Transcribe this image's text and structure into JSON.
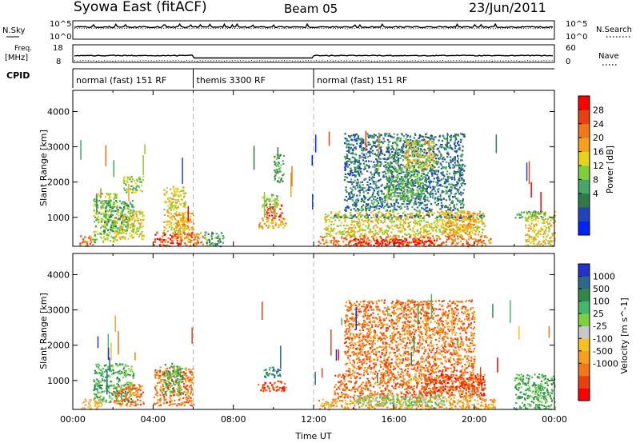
{
  "header": {
    "station_title": "Syowa East (fitACF)",
    "beam": "Beam 05",
    "date": "23/Jun/2011"
  },
  "top_panel": {
    "left_label": "N.Sky",
    "left_ticks": [
      "10^5",
      "10^0"
    ],
    "right_ticks": [
      "10^5",
      "10^0"
    ],
    "right_label": "N.Search"
  },
  "freq_panel": {
    "label_line1": "Freq.",
    "label_line2": "[MHz]",
    "left_ticks": [
      "18",
      "8"
    ],
    "right_ticks": [
      "60",
      "0"
    ],
    "right_label": "Nave"
  },
  "cpid": {
    "label": "CPID",
    "segments": [
      {
        "start": 0,
        "end": 6,
        "text": "normal (fast) 151 RF"
      },
      {
        "start": 6,
        "end": 12,
        "text": "themis 3300 RF"
      },
      {
        "start": 12,
        "end": 24,
        "text": "normal (fast) 151 RF"
      }
    ]
  },
  "chart_data": [
    {
      "type": "heatmap",
      "title": "",
      "xlabel": "",
      "ylabel": "Slant Range [km]",
      "xlim": [
        0,
        24
      ],
      "ylim": [
        180,
        4600
      ],
      "yticks": [
        1000,
        2000,
        3000,
        4000
      ],
      "colorbar_label": "Power [dB]",
      "colorbar_ticks": [
        "28",
        "24",
        "20",
        "16",
        "12",
        "8",
        "4"
      ],
      "colorbar_colors": [
        "#0022ff",
        "#2244bb",
        "#2f7a4a",
        "#45a868",
        "#7fcf3a",
        "#e8d21a",
        "#f7a020",
        "#f07818",
        "#e84010",
        "#ff0000"
      ],
      "regions": [
        {
          "t0": 0.3,
          "t1": 1.0,
          "r0": 200,
          "r1": 500,
          "level": 7
        },
        {
          "t0": 1.0,
          "t1": 2.2,
          "r0": 300,
          "r1": 1700,
          "level": 4
        },
        {
          "t0": 1.5,
          "t1": 3.0,
          "r0": 600,
          "r1": 1500,
          "level": 3
        },
        {
          "t0": 2.0,
          "t1": 3.5,
          "r0": 400,
          "r1": 1200,
          "level": 5
        },
        {
          "t0": 2.5,
          "t1": 3.5,
          "r0": 1700,
          "r1": 2200,
          "level": 4
        },
        {
          "t0": 4.0,
          "t1": 5.4,
          "r0": 200,
          "r1": 600,
          "level": 8
        },
        {
          "t0": 4.5,
          "t1": 5.6,
          "r0": 600,
          "r1": 1900,
          "level": 5
        },
        {
          "t0": 5.0,
          "t1": 6.0,
          "r0": 300,
          "r1": 1200,
          "level": 6
        },
        {
          "t0": 5.5,
          "t1": 6.5,
          "r0": 200,
          "r1": 600,
          "level": 7
        },
        {
          "t0": 6.5,
          "t1": 7.5,
          "r0": 200,
          "r1": 600,
          "level": 3
        },
        {
          "t0": 9.5,
          "t1": 10.4,
          "r0": 1000,
          "r1": 1400,
          "level": 8
        },
        {
          "t0": 9.2,
          "t1": 10.6,
          "r0": 700,
          "r1": 1000,
          "level": 6
        },
        {
          "t0": 9.4,
          "t1": 10.2,
          "r0": 1300,
          "r1": 1700,
          "level": 4
        },
        {
          "t0": 10.0,
          "t1": 10.5,
          "r0": 2000,
          "r1": 2800,
          "level": 3
        },
        {
          "t0": 12.2,
          "t1": 20.8,
          "r0": 200,
          "r1": 500,
          "level": 7
        },
        {
          "t0": 14.0,
          "t1": 18.0,
          "r0": 220,
          "r1": 420,
          "level": 9
        },
        {
          "t0": 12.5,
          "t1": 20.5,
          "r0": 500,
          "r1": 1200,
          "level": 5
        },
        {
          "t0": 13.0,
          "t1": 20.5,
          "r0": 1000,
          "r1": 1100,
          "level": 2
        },
        {
          "t0": 13.5,
          "t1": 19.5,
          "r0": 1200,
          "r1": 3400,
          "level": 2
        },
        {
          "t0": 15.5,
          "t1": 17.5,
          "r0": 1500,
          "r1": 2600,
          "level": 3
        },
        {
          "t0": 16.5,
          "t1": 18.0,
          "r0": 2400,
          "r1": 3200,
          "level": 5
        },
        {
          "t0": 18.5,
          "t1": 20.0,
          "r0": 500,
          "r1": 1200,
          "level": 6
        },
        {
          "t0": 22.5,
          "t1": 24.0,
          "r0": 200,
          "r1": 1200,
          "level": 5
        },
        {
          "t0": 22.0,
          "t1": 23.5,
          "r0": 1000,
          "r1": 1200,
          "level": 3
        }
      ]
    },
    {
      "type": "heatmap",
      "title": "",
      "xlabel": "Time UT",
      "ylabel": "Slant Range [km]",
      "xlim": [
        0,
        24
      ],
      "ylim": [
        180,
        4600
      ],
      "xticks": [
        "00:00",
        "04:00",
        "08:00",
        "12:00",
        "16:00",
        "20:00",
        "00:00"
      ],
      "yticks": [
        1000,
        2000,
        3000,
        4000
      ],
      "colorbar_label": "Velocity [m s^-1]",
      "colorbar_ticks": [
        "1000",
        "500",
        "100",
        "25",
        "-25",
        "-100",
        "-500",
        "-1000"
      ],
      "colorbar_colors": [
        "#2233cc",
        "#2a6a8a",
        "#2f8a4a",
        "#44b86a",
        "#7fd040",
        "#c8c8c8",
        "#f7c020",
        "#f7a020",
        "#f07818",
        "#e84010",
        "#ff0000"
      ],
      "regions": [
        {
          "t0": 0.3,
          "t1": 1.5,
          "r0": 200,
          "r1": 500,
          "level": 6
        },
        {
          "t0": 1.0,
          "t1": 3.0,
          "r0": 400,
          "r1": 1500,
          "level": 3
        },
        {
          "t0": 2.0,
          "t1": 3.5,
          "r0": 300,
          "r1": 900,
          "level": 8
        },
        {
          "t0": 4.0,
          "t1": 6.0,
          "r0": 300,
          "r1": 1400,
          "level": 8
        },
        {
          "t0": 4.5,
          "t1": 5.5,
          "r0": 600,
          "r1": 1500,
          "level": 3
        },
        {
          "t0": 9.2,
          "t1": 10.6,
          "r0": 700,
          "r1": 1000,
          "level": 9
        },
        {
          "t0": 9.5,
          "t1": 10.3,
          "r0": 1100,
          "r1": 1400,
          "level": 2
        },
        {
          "t0": 12.2,
          "t1": 21.0,
          "r0": 200,
          "r1": 500,
          "level": 7
        },
        {
          "t0": 13.0,
          "t1": 20.5,
          "r0": 500,
          "r1": 1200,
          "level": 8
        },
        {
          "t0": 14.0,
          "t1": 18.5,
          "r0": 300,
          "r1": 600,
          "level": 4
        },
        {
          "t0": 13.5,
          "t1": 20.0,
          "r0": 1200,
          "r1": 3300,
          "level": 8
        },
        {
          "t0": 16.0,
          "t1": 18.5,
          "r0": 1000,
          "r1": 1100,
          "level": 5
        },
        {
          "t0": 17.5,
          "t1": 20.5,
          "r0": 600,
          "r1": 1200,
          "level": 9
        },
        {
          "t0": 22.0,
          "t1": 24.0,
          "r0": 200,
          "r1": 1200,
          "level": 3
        }
      ]
    }
  ]
}
